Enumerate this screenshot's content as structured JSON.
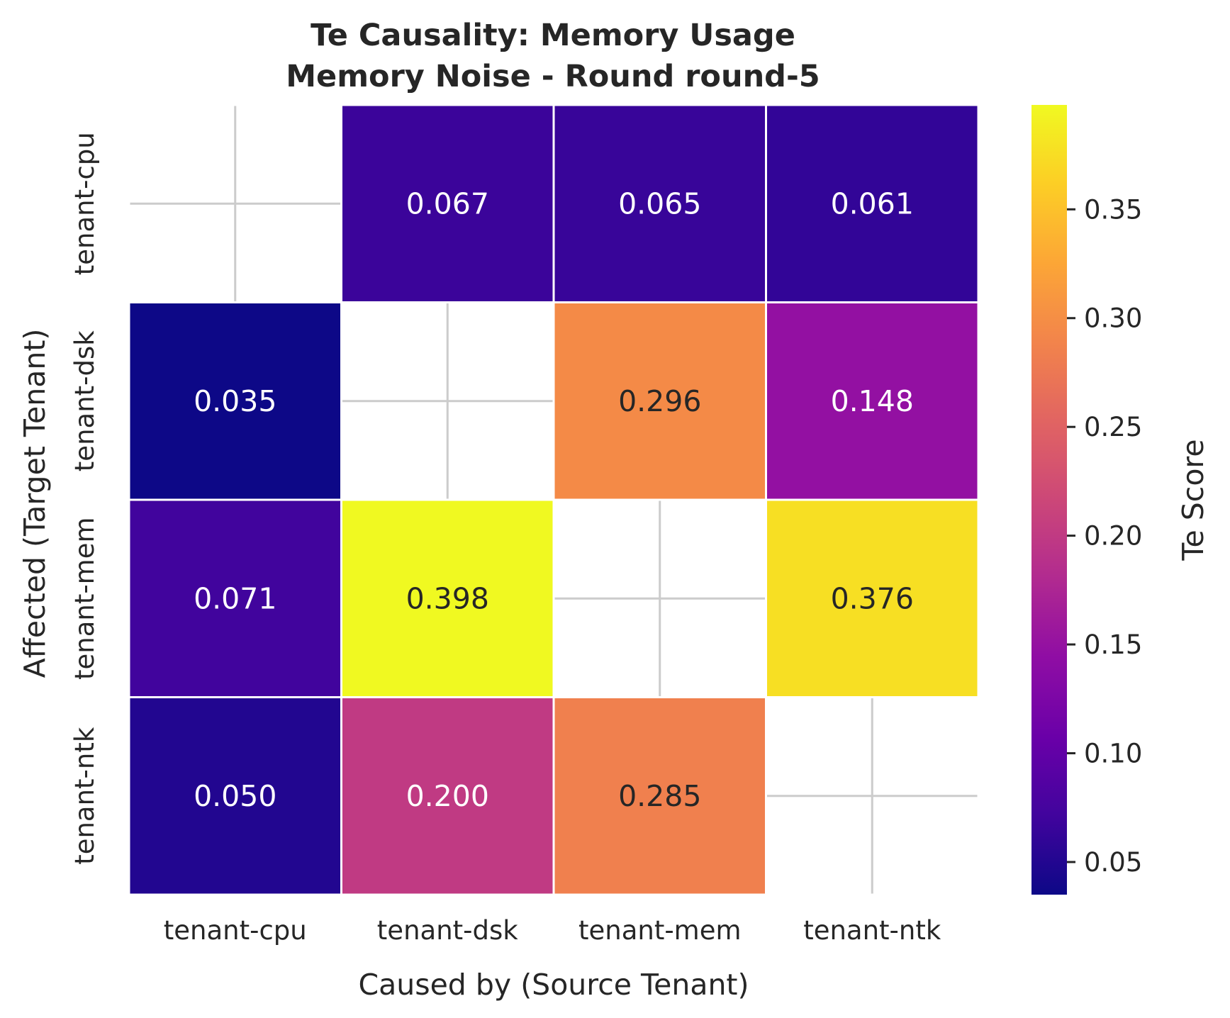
{
  "chart_data": {
    "type": "heatmap",
    "title": "Te Causality: Memory Usage",
    "subtitle": "Memory Noise - Round round-5",
    "xlabel": "Caused by (Source Tenant)",
    "ylabel": "Affected (Target Tenant)",
    "x_categories": [
      "tenant-cpu",
      "tenant-dsk",
      "tenant-mem",
      "tenant-ntk"
    ],
    "y_categories": [
      "tenant-cpu",
      "tenant-dsk",
      "tenant-mem",
      "tenant-ntk"
    ],
    "values": [
      [
        null,
        0.067,
        0.065,
        0.061
      ],
      [
        0.035,
        null,
        0.296,
        0.148
      ],
      [
        0.071,
        0.398,
        null,
        0.376
      ],
      [
        0.05,
        0.2,
        0.285,
        null
      ]
    ],
    "value_labels": [
      [
        "",
        "0.067",
        "0.065",
        "0.061"
      ],
      [
        "0.035",
        "",
        "0.296",
        "0.148"
      ],
      [
        "0.071",
        "0.398",
        "",
        "0.376"
      ],
      [
        "0.050",
        "0.200",
        "0.285",
        ""
      ]
    ],
    "colorbar": {
      "label": "Te Score",
      "colormap": "plasma",
      "vmin": 0.035,
      "vmax": 0.398,
      "ticks": [
        0.05,
        0.1,
        0.15,
        0.2,
        0.25,
        0.3,
        0.35
      ],
      "tick_labels": [
        "0.05",
        "0.10",
        "0.15",
        "0.20",
        "0.25",
        "0.30",
        "0.35"
      ]
    },
    "grid": true
  }
}
